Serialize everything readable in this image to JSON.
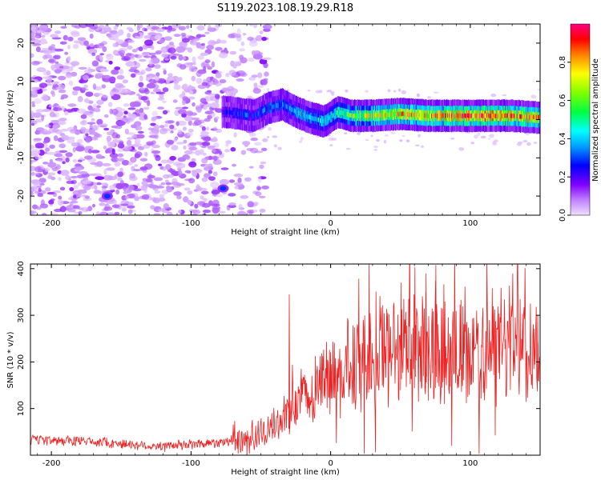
{
  "title": "S119.2023.108.19.29.R18",
  "chart_data": [
    {
      "type": "heatmap",
      "xlabel": "Height of straight line (km)",
      "ylabel": "Frequency (Hz)",
      "xlim": [
        -215,
        150
      ],
      "ylim": [
        -25,
        25
      ],
      "x_ticks": [
        -200,
        -100,
        0,
        100
      ],
      "y_ticks": [
        -20,
        -10,
        0,
        10,
        20
      ],
      "colorbar": {
        "label": "Normalized spectral amplitude",
        "range": [
          0,
          1
        ],
        "ticks": [
          0.0,
          0.2,
          0.4,
          0.6,
          0.8
        ],
        "colormap": [
          "#f0e0ff",
          "#c080ff",
          "#8000ff",
          "#0000ff",
          "#00a0ff",
          "#00ffff",
          "#00ff40",
          "#80ff00",
          "#ffff00",
          "#ff8000",
          "#ff0000",
          "#ff0080"
        ]
      },
      "features": [
        {
          "kind": "noise",
          "x_range": [
            -215,
            -45
          ],
          "y_range": [
            -25,
            25
          ],
          "amplitude": 0.1
        },
        {
          "kind": "signal_track",
          "x": [
            -75,
            -65,
            -55,
            -45,
            -35,
            -25,
            -15,
            -5,
            5,
            15,
            30,
            50,
            70,
            90,
            110,
            130,
            150
          ],
          "y": [
            2,
            1.5,
            1,
            3,
            4,
            2,
            0.5,
            -0.5,
            2,
            1,
            1,
            1.5,
            1,
            1,
            1,
            1,
            0.5
          ],
          "amplitude": [
            0.25,
            0.3,
            0.3,
            0.35,
            0.35,
            0.4,
            0.4,
            0.45,
            0.5,
            0.6,
            0.7,
            0.75,
            0.8,
            0.85,
            0.9,
            0.85,
            0.8
          ]
        },
        {
          "kind": "spot",
          "x": -160,
          "y": -20,
          "amplitude": 0.3
        },
        {
          "kind": "spot",
          "x": -77,
          "y": -18,
          "amplitude": 0.3
        }
      ]
    },
    {
      "type": "line",
      "xlabel": "Height of straight line (km)",
      "ylabel": "SNR (10 * v/v)",
      "xlim": [
        -215,
        150
      ],
      "ylim": [
        0,
        410
      ],
      "x_ticks": [
        -200,
        -100,
        0,
        100
      ],
      "y_ticks": [
        100,
        200,
        300,
        400
      ],
      "color": "#ee2222",
      "trend": {
        "x": [
          -215,
          -170,
          -140,
          -120,
          -80,
          -60,
          -50,
          -40,
          -30,
          -20,
          -10,
          0,
          20,
          40,
          60,
          80,
          100,
          120,
          140,
          150
        ],
        "y": [
          32,
          30,
          22,
          18,
          28,
          35,
          48,
          60,
          95,
          120,
          140,
          170,
          200,
          225,
          240,
          240,
          230,
          232,
          240,
          225
        ]
      },
      "spikes": [
        {
          "x": -30,
          "y": 345
        },
        {
          "x": 60,
          "y": 403
        },
        {
          "x": 68,
          "y": 390
        },
        {
          "x": 75,
          "y": 408
        },
        {
          "x": 50,
          "y": 370
        },
        {
          "x": 148,
          "y": 300
        }
      ]
    }
  ]
}
